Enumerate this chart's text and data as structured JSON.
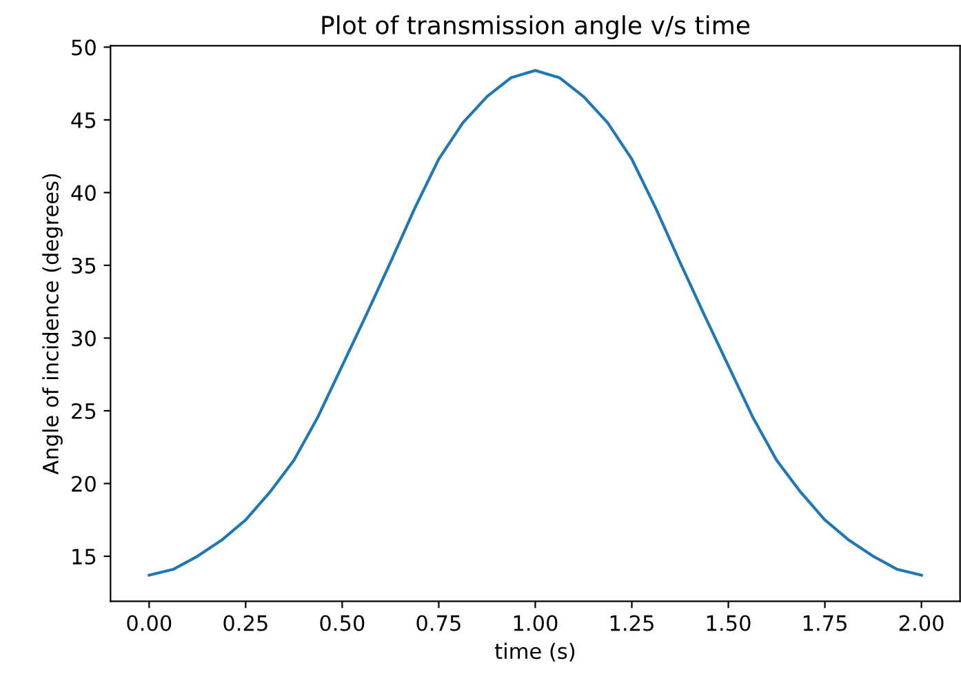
{
  "chart_data": {
    "type": "line",
    "title": "Plot of transmission angle v/s time",
    "xlabel": "time (s)",
    "ylabel": "Angle of incidence (degrees)",
    "series": [
      {
        "color": "#1f77b4",
        "x": [
          0,
          0.0625,
          0.125,
          0.1875,
          0.25,
          0.3125,
          0.375,
          0.4375,
          0.5,
          0.5625,
          0.625,
          0.6875,
          0.75,
          0.8125,
          0.875,
          0.9375,
          1.0,
          1.0625,
          1.125,
          1.1875,
          1.25,
          1.3125,
          1.375,
          1.4375,
          1.5,
          1.5625,
          1.625,
          1.6875,
          1.75,
          1.8125,
          1.875,
          1.9375,
          2.0
        ],
        "values": [
          13.7,
          14.1,
          15.0,
          16.1,
          17.5,
          19.4,
          21.6,
          24.6,
          28.1,
          31.6,
          35.2,
          38.9,
          42.3,
          44.8,
          46.6,
          47.9,
          48.4,
          47.9,
          46.6,
          44.8,
          42.3,
          38.9,
          35.2,
          31.6,
          28.1,
          24.6,
          21.6,
          19.4,
          17.5,
          16.1,
          15.0,
          14.1,
          13.7
        ]
      }
    ],
    "xlim": [
      -0.1,
      2.1
    ],
    "ylim": [
      11.9,
      50.1
    ],
    "xticks": [
      {
        "value": 0,
        "label": "0.00"
      },
      {
        "value": 0.25,
        "label": "0.25"
      },
      {
        "value": 0.5,
        "label": "0.50"
      },
      {
        "value": 0.75,
        "label": "0.75"
      },
      {
        "value": 1,
        "label": "1.00"
      },
      {
        "value": 1.25,
        "label": "1.25"
      },
      {
        "value": 1.5,
        "label": "1.50"
      },
      {
        "value": 1.75,
        "label": "1.75"
      },
      {
        "value": 2,
        "label": "2.00"
      }
    ],
    "yticks": [
      15,
      20,
      25,
      30,
      35,
      40,
      45,
      50
    ]
  }
}
